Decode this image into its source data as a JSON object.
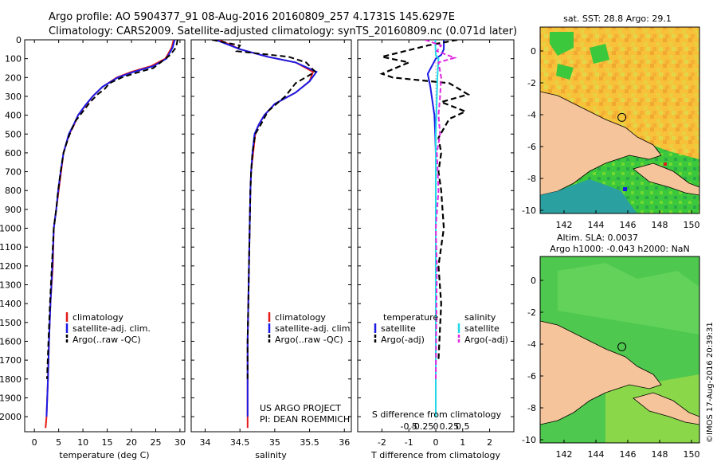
{
  "header": {
    "line1": "Argo profile: AO 5904377_91 08-Aug-2016 20160809_257 4.1731S 145.6297E",
    "line2": "Climatology: CARS2009. Satellite-adjusted climatology: synTS_20160809.nc (0.071d later)"
  },
  "colors": {
    "climatology": "#e31a1a",
    "satellite": "#1a1ae6",
    "argo": "#000000",
    "salinity_satellite": "#22d8e8",
    "salinity_argo": "#e028e0",
    "land": "#f5c49a"
  },
  "chart_data": [
    {
      "type": "line",
      "name": "temperature-profile",
      "xlabel": "temperature (deg C)",
      "ylabel": "",
      "xlim": [
        -2,
        31
      ],
      "ylim": [
        2080,
        0
      ],
      "xticks": [
        "0",
        "5",
        "10",
        "15",
        "20",
        "25",
        "30"
      ],
      "xtick_values": [
        0,
        5,
        10,
        15,
        20,
        25,
        30
      ],
      "yticks": [
        "0",
        "100",
        "200",
        "300",
        "400",
        "500",
        "600",
        "700",
        "800",
        "900",
        "1000",
        "1100",
        "1200",
        "1300",
        "1400",
        "1500",
        "1600",
        "1700",
        "1800",
        "1900",
        "2000"
      ],
      "ytick_values": [
        0,
        100,
        200,
        300,
        400,
        500,
        600,
        700,
        800,
        900,
        1000,
        1100,
        1200,
        1300,
        1400,
        1500,
        1600,
        1700,
        1800,
        1900,
        2000
      ],
      "legend": [
        "climatology",
        "satellite-adj. clim.",
        "Argo(..raw -QC)"
      ],
      "series": [
        {
          "name": "climatology",
          "x": [
            28.7,
            28.3,
            27.0,
            24.0,
            20.0,
            17.0,
            14.0,
            12.0,
            10.5,
            9.0,
            8.2,
            7.2,
            6.0,
            5.5,
            5.0,
            4.5,
            4.0,
            3.8,
            3.3,
            3.0,
            2.8,
            2.5,
            2.3
          ],
          "y": [
            0,
            40,
            100,
            140,
            170,
            200,
            250,
            300,
            350,
            400,
            450,
            500,
            600,
            700,
            800,
            900,
            1000,
            1200,
            1400,
            1600,
            1800,
            2000,
            2060
          ]
        },
        {
          "name": "satellite-adj. clim.",
          "x": [
            28.9,
            28.5,
            27.2,
            24.5,
            20.5,
            17.2,
            14.0,
            12.0,
            10.4,
            9.0,
            8.1,
            7.1,
            6.0,
            5.4,
            4.9,
            4.5,
            4.0,
            3.7,
            3.3,
            3.0,
            2.8,
            2.5
          ],
          "y": [
            0,
            40,
            100,
            140,
            170,
            200,
            250,
            300,
            350,
            400,
            450,
            500,
            600,
            700,
            800,
            900,
            1000,
            1200,
            1400,
            1600,
            1800,
            2000
          ]
        },
        {
          "name": "Argo(..raw -QC)",
          "x": [
            29.5,
            29.2,
            28.0,
            26.0,
            24.5,
            21.0,
            18.0,
            15.5,
            14.5,
            13.0,
            11.5,
            10.0,
            8.5,
            7.6,
            7.0,
            6.0,
            5.4,
            4.9,
            4.5,
            4.0,
            3.6,
            3.2,
            2.9,
            2.6
          ],
          "y": [
            0,
            40,
            80,
            120,
            150,
            175,
            200,
            230,
            260,
            290,
            330,
            380,
            430,
            480,
            520,
            600,
            700,
            800,
            900,
            1000,
            1200,
            1400,
            1600,
            1800
          ]
        }
      ]
    },
    {
      "type": "line",
      "name": "salinity-profile",
      "xlabel": "salinity",
      "xlim": [
        33.8,
        36.1
      ],
      "ylim": [
        2080,
        0
      ],
      "xticks": [
        "34",
        "34.5",
        "35",
        "35.5",
        "36"
      ],
      "xtick_values": [
        34,
        34.5,
        35,
        35.5,
        36
      ],
      "legend": [
        "climatology",
        "satellite-adj. clim.",
        "Argo(..raw -QC)"
      ],
      "annotation": [
        "US ARGO PROJECT",
        "PI: DEAN ROEMMICH"
      ],
      "series": [
        {
          "name": "climatology",
          "x": [
            34.2,
            34.5,
            34.9,
            35.3,
            35.55,
            35.5,
            35.3,
            35.0,
            34.85,
            34.77,
            34.72,
            34.69,
            34.66,
            34.65,
            34.64,
            34.63,
            34.62,
            34.61,
            34.61,
            34.61,
            34.61
          ],
          "y": [
            0,
            50,
            90,
            120,
            170,
            220,
            280,
            340,
            400,
            450,
            500,
            600,
            700,
            800,
            1000,
            1200,
            1400,
            1600,
            1800,
            2000,
            2060
          ]
        },
        {
          "name": "satellite-adj. clim.",
          "x": [
            34.15,
            34.5,
            34.9,
            35.3,
            35.6,
            35.5,
            35.3,
            35.0,
            34.85,
            34.77,
            34.71,
            34.68,
            34.66,
            34.65,
            34.64,
            34.63,
            34.62,
            34.61,
            34.61,
            34.61
          ],
          "y": [
            0,
            50,
            90,
            120,
            170,
            220,
            280,
            340,
            400,
            450,
            500,
            600,
            700,
            800,
            1000,
            1200,
            1400,
            1600,
            1800,
            2000
          ]
        },
        {
          "name": "Argo(..raw -QC)",
          "x": [
            34.1,
            34.5,
            34.45,
            35.2,
            35.45,
            35.58,
            35.3,
            35.15,
            34.9,
            34.8,
            34.72,
            34.68,
            34.66,
            34.65,
            34.64,
            34.63,
            34.62,
            34.61,
            34.61
          ],
          "y": [
            0,
            30,
            60,
            90,
            120,
            170,
            230,
            300,
            380,
            450,
            500,
            600,
            700,
            800,
            1000,
            1200,
            1400,
            1600,
            1800
          ]
        }
      ]
    },
    {
      "type": "line",
      "name": "difference-profile",
      "xlabel": "T difference from climatology",
      "xlabel_top": "S difference from climatology",
      "xlim": [
        -2.9,
        2.9
      ],
      "ylim": [
        2080,
        0
      ],
      "xticks": [
        "-2",
        "-1",
        "0",
        "1",
        "2"
      ],
      "xtick_values": [
        -2,
        -1,
        0,
        1,
        2
      ],
      "xticks_top": [
        "-0.5",
        "-0.25",
        "0",
        "0.25",
        "0.5"
      ],
      "xtick_top_values": [
        -0.5,
        -0.25,
        0,
        0.25,
        0.5
      ],
      "legend_temperature": {
        "title": "temperature",
        "items": [
          "satellite",
          "Argo(-adj)"
        ]
      },
      "legend_salinity": {
        "title": "salinity",
        "items": [
          "satellite",
          "Argo(-adj)"
        ]
      },
      "series": [
        {
          "name": "temperature satellite",
          "x": [
            0.3,
            0.3,
            0.2,
            0,
            -0.3,
            -0.2,
            -0.15,
            -0.1,
            -0.05,
            -0.02,
            0,
            0,
            0,
            0,
            0
          ],
          "y": [
            0,
            50,
            80,
            100,
            180,
            250,
            300,
            350,
            400,
            500,
            600,
            800,
            1200,
            1600,
            2000
          ]
        },
        {
          "name": "temperature Argo(-adj)",
          "x": [
            0.8,
            -0.3,
            -2.0,
            -1.0,
            -2.0,
            -1.6,
            0.5,
            1.2,
            0.2,
            1.1,
            0.5,
            0.3,
            0.1,
            0.2,
            0.1,
            0.2,
            0.3,
            0.1,
            0.2,
            0.1
          ],
          "y": [
            0,
            30,
            90,
            120,
            180,
            200,
            230,
            290,
            330,
            380,
            420,
            470,
            520,
            600,
            700,
            800,
            1000,
            1200,
            1400,
            1700
          ]
        },
        {
          "name": "salinity satellite",
          "x": [
            -0.01,
            0.0,
            0.05,
            0.03,
            0.02,
            0.0,
            0.0,
            0.0,
            0.0,
            0.0
          ],
          "y": [
            0,
            80,
            100,
            200,
            300,
            500,
            700,
            1000,
            1500,
            2000
          ]
        },
        {
          "name": "salinity Argo(-adj)",
          "x": [
            -0.2,
            0.1,
            0.02,
            0.35,
            0.05,
            0.1,
            0.08,
            0.05,
            0.08,
            0.02,
            0.05,
            0.0,
            0.02,
            0.01,
            0.0
          ],
          "y": [
            0,
            30,
            60,
            95,
            120,
            200,
            300,
            400,
            500,
            600,
            800,
            1000,
            1200,
            1500,
            1800
          ]
        }
      ]
    },
    {
      "type": "heatmap",
      "name": "sst-map",
      "title": "sat. SST: 28.8 Argo: 29.1",
      "xlim": [
        140.5,
        150.5
      ],
      "ylim": [
        -10.2,
        1.5
      ],
      "xticks": [
        "142",
        "144",
        "146",
        "148",
        "150"
      ],
      "xtick_values": [
        142,
        144,
        146,
        148,
        150
      ],
      "yticks": [
        "0",
        "-2",
        "-4",
        "-6",
        "-8",
        "-10"
      ],
      "ytick_values": [
        0,
        -2,
        -4,
        -6,
        -8,
        -10
      ],
      "argo_location": [
        145.63,
        -4.17
      ]
    },
    {
      "type": "heatmap",
      "name": "sla-map",
      "title": "Altim. SLA: 0.0037",
      "subtitle": "Argo h1000: -0.043 h2000: NaN",
      "xlim": [
        140.5,
        150.5
      ],
      "ylim": [
        -10.2,
        1.5
      ],
      "xticks": [
        "142",
        "144",
        "146",
        "148",
        "150"
      ],
      "xtick_values": [
        142,
        144,
        146,
        148,
        150
      ],
      "yticks": [
        "0",
        "-2",
        "-4",
        "-6",
        "-8",
        "-10"
      ],
      "ytick_values": [
        0,
        -2,
        -4,
        -6,
        -8,
        -10
      ],
      "argo_location": [
        145.63,
        -4.17
      ]
    }
  ],
  "footer": {
    "credit": "©IMOS 17-Aug-2016 20:39:31"
  }
}
